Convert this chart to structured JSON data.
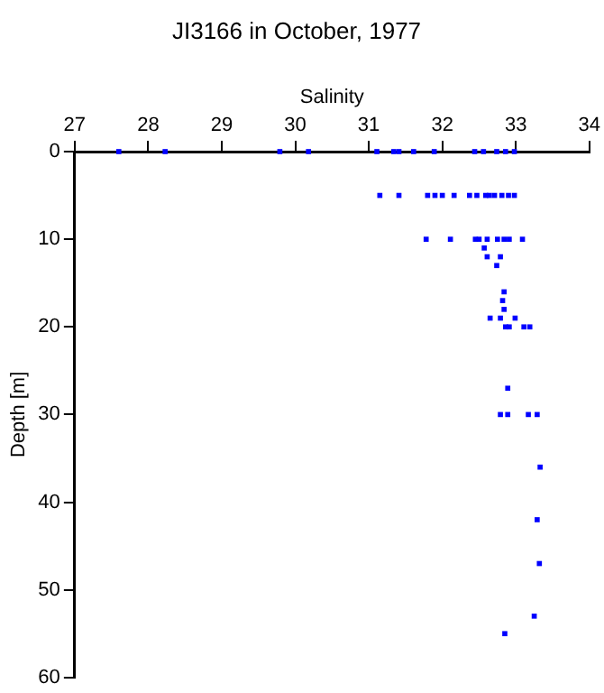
{
  "chart_data": {
    "type": "scatter",
    "title": "JI3166 in October, 1977",
    "xlabel": "Salinity",
    "ylabel": "Depth [m]",
    "xlim": [
      27,
      34
    ],
    "xticks": [
      27,
      28,
      29,
      30,
      31,
      32,
      33,
      34
    ],
    "ylim": [
      60,
      0
    ],
    "yticks": [
      0,
      10,
      20,
      30,
      40,
      50,
      60
    ],
    "grid": false,
    "legend": false,
    "marker": "square",
    "series": [
      {
        "color": "#0000ff",
        "x": [
          27.6,
          28.23,
          29.79,
          30.18,
          31.11,
          31.34,
          31.41,
          31.61,
          31.89,
          32.44,
          32.56,
          32.74,
          32.86,
          32.98,
          31.15,
          31.41,
          31.8,
          31.9,
          32.0,
          32.16,
          32.37,
          32.47,
          32.59,
          32.64,
          32.71,
          32.81,
          32.9,
          32.98,
          31.78,
          32.11,
          32.45,
          32.5,
          32.61,
          32.75,
          32.84,
          32.91,
          33.09,
          32.57,
          32.61,
          32.79,
          32.74,
          32.84,
          32.82,
          32.84,
          32.65,
          32.79,
          32.99,
          32.86,
          32.91,
          33.11,
          33.19,
          32.89,
          32.79,
          32.89,
          33.17,
          33.29,
          33.33,
          33.29,
          33.32,
          33.25,
          32.85
        ],
        "values": [
          0,
          0,
          0,
          0,
          0,
          0,
          0,
          0,
          0,
          0,
          0,
          0,
          0,
          0,
          5,
          5,
          5,
          5,
          5,
          5,
          5,
          5,
          5,
          5,
          5,
          5,
          5,
          5,
          10,
          10,
          10,
          10,
          10,
          10,
          10,
          10,
          10,
          11,
          12,
          12,
          13,
          16,
          17,
          18,
          19,
          19,
          19,
          20,
          20,
          20,
          20,
          27,
          30,
          30,
          30,
          30,
          36,
          42,
          47,
          53,
          55
        ]
      }
    ]
  }
}
